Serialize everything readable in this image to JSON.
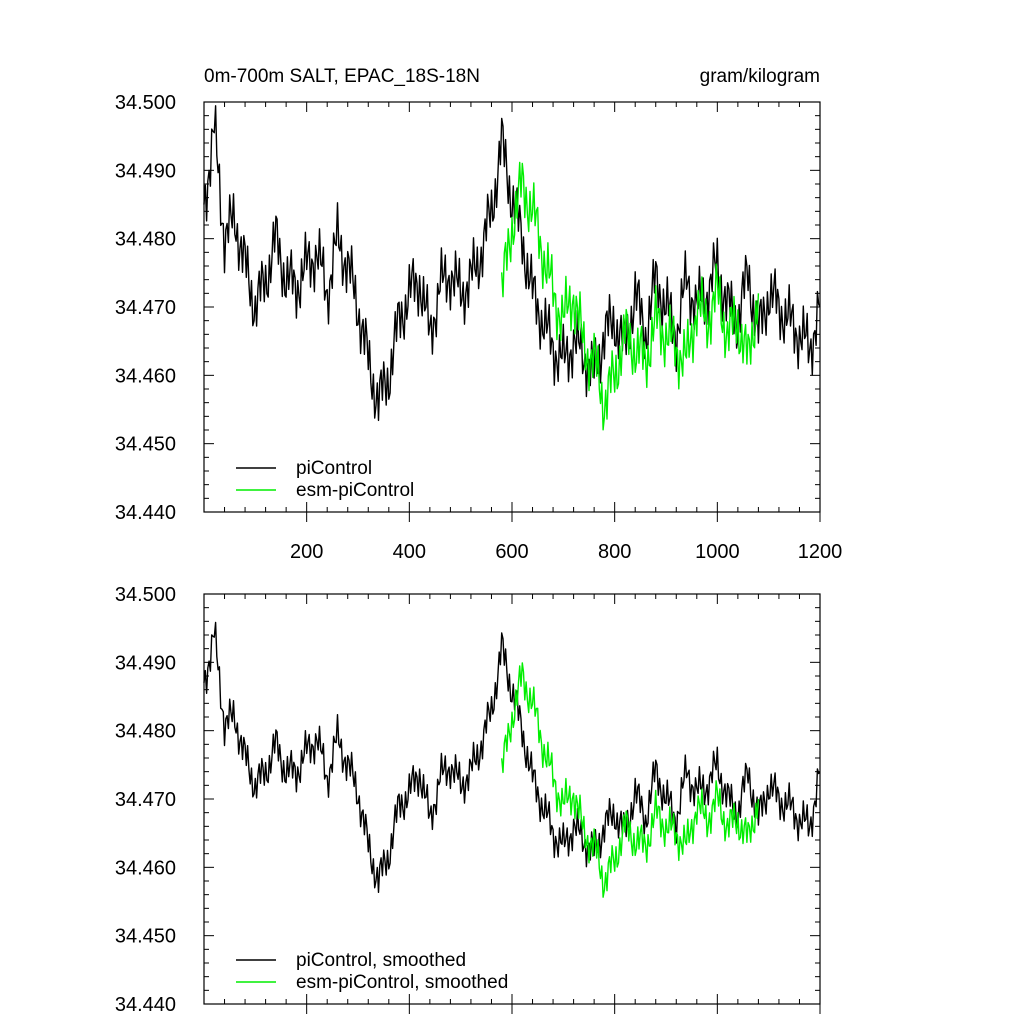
{
  "chart_data": [
    {
      "type": "line",
      "title": "0m-700m SALT, EPAC_18S-18N",
      "units": "gram/kilogram",
      "xlim": [
        0,
        1200
      ],
      "ylim": [
        34.44,
        34.5
      ],
      "y_ticks": [
        34.44,
        34.45,
        34.46,
        34.47,
        34.48,
        34.49,
        34.5
      ],
      "y_tick_labels": [
        "34.440",
        "34.450",
        "34.460",
        "34.470",
        "34.480",
        "34.490",
        "34.500"
      ],
      "x_ticks": [
        200,
        400,
        600,
        800,
        1000,
        1200
      ],
      "x_tick_labels": [
        "200",
        "400",
        "600",
        "800",
        "1000",
        "1200"
      ],
      "legend_position": "bottom-left",
      "series": [
        {
          "name": "piControl",
          "color": "#000000",
          "x": [
            0,
            20,
            40,
            60,
            80,
            100,
            120,
            140,
            160,
            180,
            200,
            220,
            240,
            260,
            280,
            300,
            320,
            340,
            360,
            380,
            400,
            420,
            440,
            460,
            480,
            500,
            520,
            540,
            560,
            580,
            600,
            620,
            640,
            660,
            680,
            700,
            720,
            740,
            760,
            780,
            800,
            820,
            840,
            860,
            880,
            900,
            920,
            940,
            960,
            980,
            1000,
            1020,
            1040,
            1060,
            1080,
            1100,
            1120,
            1140,
            1160,
            1180,
            1200
          ],
          "y": [
            34.485,
            34.496,
            34.48,
            34.483,
            34.476,
            34.47,
            34.474,
            34.48,
            34.474,
            34.473,
            34.476,
            34.478,
            34.472,
            34.48,
            34.476,
            34.47,
            34.462,
            34.456,
            34.46,
            34.468,
            34.472,
            34.474,
            34.466,
            34.473,
            34.475,
            34.472,
            34.474,
            34.478,
            34.484,
            34.494,
            34.486,
            34.48,
            34.472,
            34.468,
            34.464,
            34.462,
            34.465,
            34.463,
            34.46,
            34.466,
            34.468,
            34.464,
            34.472,
            34.466,
            34.474,
            34.47,
            34.466,
            34.474,
            34.47,
            34.472,
            34.476,
            34.47,
            34.468,
            34.475,
            34.466,
            34.472,
            34.47,
            34.468,
            34.466,
            34.464,
            34.47
          ]
        },
        {
          "name": "esm-piControl",
          "color": "#00ee00",
          "x": [
            580,
            600,
            620,
            640,
            660,
            680,
            700,
            720,
            740,
            760,
            780,
            800,
            820,
            840,
            860,
            880,
            900,
            920,
            940,
            960,
            980,
            1000,
            1020,
            1040,
            1060,
            1080
          ],
          "y": [
            34.472,
            34.482,
            34.488,
            34.484,
            34.478,
            34.472,
            34.468,
            34.472,
            34.464,
            34.462,
            34.456,
            34.46,
            34.466,
            34.464,
            34.462,
            34.468,
            34.466,
            34.464,
            34.462,
            34.47,
            34.468,
            34.472,
            34.466,
            34.468,
            34.462,
            34.472
          ]
        }
      ]
    },
    {
      "type": "line",
      "title": "",
      "units": "",
      "xlim": [
        0,
        1200
      ],
      "ylim": [
        34.44,
        34.5
      ],
      "y_ticks": [
        34.44,
        34.45,
        34.46,
        34.47,
        34.48,
        34.49,
        34.5
      ],
      "y_tick_labels": [
        "34.440",
        "34.450",
        "34.460",
        "34.470",
        "34.480",
        "34.490",
        "34.500"
      ],
      "x_ticks": [
        200,
        400,
        600,
        800,
        1000,
        1200
      ],
      "x_tick_labels": [],
      "legend_position": "bottom-left",
      "series": [
        {
          "name": "piControl, smoothed",
          "color": "#000000",
          "x": [
            0,
            20,
            40,
            60,
            80,
            100,
            120,
            140,
            160,
            180,
            200,
            220,
            240,
            260,
            280,
            300,
            320,
            340,
            360,
            380,
            400,
            420,
            440,
            460,
            480,
            500,
            520,
            540,
            560,
            580,
            600,
            620,
            640,
            660,
            680,
            700,
            720,
            740,
            760,
            780,
            800,
            820,
            840,
            860,
            880,
            900,
            920,
            940,
            960,
            980,
            1000,
            1020,
            1040,
            1060,
            1080,
            1100,
            1120,
            1140,
            1160,
            1180,
            1200
          ],
          "y": [
            34.487,
            34.494,
            34.481,
            34.482,
            34.476,
            34.472,
            34.474,
            34.478,
            34.474,
            34.474,
            34.477,
            34.479,
            34.473,
            34.479,
            34.475,
            34.471,
            34.463,
            34.458,
            34.462,
            34.469,
            34.471,
            34.474,
            34.467,
            34.473,
            34.475,
            34.472,
            34.474,
            34.478,
            34.483,
            34.492,
            34.486,
            34.48,
            34.473,
            34.469,
            34.465,
            34.463,
            34.466,
            34.464,
            34.462,
            34.466,
            34.468,
            34.465,
            34.471,
            34.467,
            34.474,
            34.47,
            34.467,
            34.474,
            34.471,
            34.472,
            34.475,
            34.47,
            34.468,
            34.474,
            34.467,
            34.472,
            34.47,
            34.469,
            34.467,
            34.466,
            34.474
          ]
        },
        {
          "name": "esm-piControl, smoothed",
          "color": "#00ee00",
          "x": [
            580,
            600,
            620,
            640,
            660,
            680,
            700,
            720,
            740,
            760,
            780,
            800,
            820,
            840,
            860,
            880,
            900,
            920,
            940,
            960,
            980,
            1000,
            1020,
            1040,
            1060,
            1080
          ],
          "y": [
            34.474,
            34.482,
            34.488,
            34.484,
            34.478,
            34.473,
            34.469,
            34.471,
            34.465,
            34.463,
            34.458,
            34.461,
            34.466,
            34.464,
            34.463,
            34.468,
            34.466,
            34.465,
            34.463,
            34.469,
            34.467,
            34.47,
            34.466,
            34.467,
            34.464,
            34.47
          ]
        }
      ]
    }
  ]
}
